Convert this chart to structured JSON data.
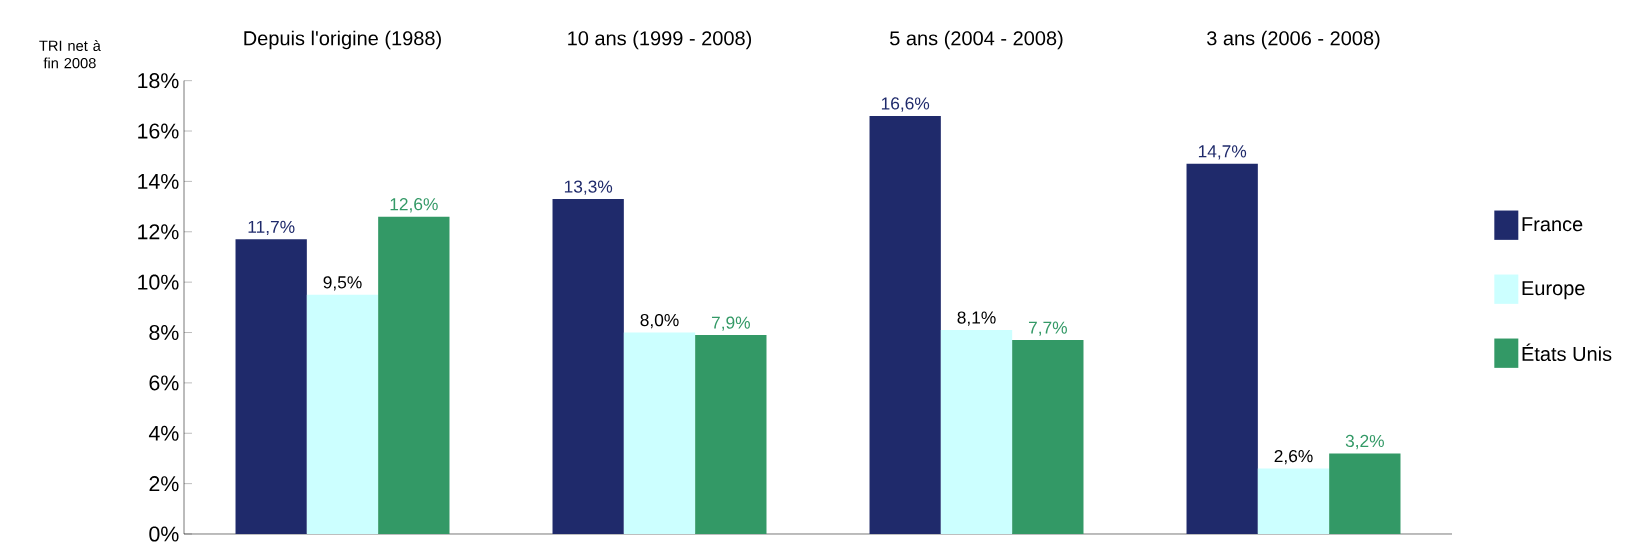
{
  "chart_data": {
    "type": "bar",
    "categories": [
      "Depuis l'origine (1988)",
      "10 ans (1999 - 2008)",
      "5 ans (2004 - 2008)",
      "3 ans (2006 - 2008)"
    ],
    "ylabel": "TRI net à fin 2008",
    "series": [
      {
        "name": "France",
        "color": "#1f2a6b",
        "values": [
          11.7,
          13.3,
          16.6,
          14.7
        ],
        "value_labels": [
          "11,7%",
          "13,3%",
          "16,6%",
          "14,7%"
        ]
      },
      {
        "name": "Europe",
        "color": "#ccffff",
        "values": [
          9.5,
          8.0,
          8.1,
          2.6
        ],
        "value_labels": [
          "9,5%",
          "8,0%",
          "8,1%",
          "2,6%"
        ]
      },
      {
        "name": "États Unis",
        "color": "#339966",
        "values": [
          12.6,
          7.9,
          7.7,
          3.2
        ],
        "value_labels": [
          "12,6%",
          "7,9%",
          "7,7%",
          "3,2%"
        ]
      }
    ],
    "ylim": [
      0,
      18
    ],
    "yticks": [
      {
        "value": 0,
        "label": "0%"
      },
      {
        "value": 2,
        "label": "2%"
      },
      {
        "value": 4,
        "label": "4%"
      },
      {
        "value": 6,
        "label": "6%"
      },
      {
        "value": 8,
        "label": "8%"
      },
      {
        "value": 10,
        "label": "10%"
      },
      {
        "value": 12,
        "label": "12%"
      },
      {
        "value": 14,
        "label": "14%"
      },
      {
        "value": 16,
        "label": "16%"
      },
      {
        "value": 18,
        "label": "18%"
      }
    ],
    "legend": "right",
    "grid": false
  }
}
